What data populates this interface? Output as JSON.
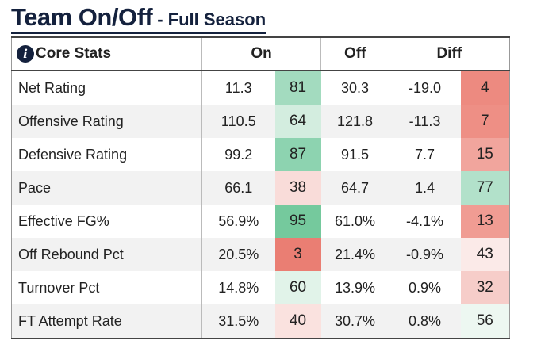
{
  "title": {
    "main": "Team On/Off",
    "sub": "- Full Season"
  },
  "header": {
    "section": "Core Stats",
    "on": "On",
    "off": "Off",
    "diff": "Diff",
    "icon": "info-icon"
  },
  "rows": [
    {
      "label": "Net Rating",
      "on": "11.3",
      "on_rank": "81",
      "on_color": "#a3dbbf",
      "off": "30.3",
      "diff": "-19.0",
      "diff_rank": "4",
      "diff_color": "#ed8a80"
    },
    {
      "label": "Offensive Rating",
      "on": "110.5",
      "on_rank": "64",
      "on_color": "#d3eddf",
      "off": "121.8",
      "diff": "-11.3",
      "diff_rank": "7",
      "diff_color": "#ee8f85"
    },
    {
      "label": "Defensive Rating",
      "on": "99.2",
      "on_rank": "87",
      "on_color": "#8dd3b0",
      "off": "91.5",
      "diff": "7.7",
      "diff_rank": "15",
      "diff_color": "#f1a59d"
    },
    {
      "label": "Pace",
      "on": "66.1",
      "on_rank": "38",
      "on_color": "#f9dcd9",
      "off": "64.7",
      "diff": "1.4",
      "diff_rank": "77",
      "diff_color": "#b2e1ca"
    },
    {
      "label": "Effective FG%",
      "on": "56.9%",
      "on_rank": "95",
      "on_color": "#75c99d",
      "off": "61.0%",
      "diff": "-4.1%",
      "diff_rank": "13",
      "diff_color": "#f09c93"
    },
    {
      "label": "Off Rebound Pct",
      "on": "20.5%",
      "on_rank": "3",
      "on_color": "#ea7e73",
      "off": "21.4%",
      "diff": "-0.9%",
      "diff_rank": "43",
      "diff_color": "#fbeae8"
    },
    {
      "label": "Turnover Pct",
      "on": "14.8%",
      "on_rank": "60",
      "on_color": "#e1f3e9",
      "off": "13.9%",
      "diff": "0.9%",
      "diff_rank": "32",
      "diff_color": "#f6cdc9"
    },
    {
      "label": "FT Attempt Rate",
      "on": "31.5%",
      "on_rank": "40",
      "on_color": "#fae2df",
      "off": "30.7%",
      "diff": "0.8%",
      "diff_rank": "56",
      "diff_color": "#edf7f1"
    }
  ]
}
